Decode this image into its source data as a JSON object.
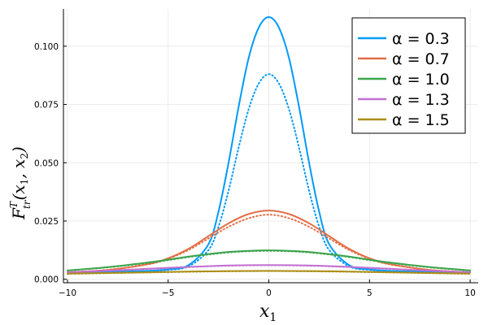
{
  "chart_data": {
    "type": "line",
    "xlabel": "x",
    "xlabel_sub": "1",
    "ylabel": "F",
    "ylabel_sup": "T",
    "ylabel_sub": "tr",
    "ylabel_args": "(x",
    "ylabel_args_sub1": "1",
    "ylabel_args_mid": ", x",
    "ylabel_args_sub2": "2",
    "ylabel_args_close": ")",
    "xlim": [
      -10.2,
      10.4
    ],
    "ylim": [
      -0.0015,
      0.116
    ],
    "xticks": [
      -10,
      -5,
      0,
      5,
      10
    ],
    "xtick_labels": [
      "−10",
      "−5",
      "0",
      "5",
      "10"
    ],
    "yticks": [
      0.0,
      0.025,
      0.05,
      0.075,
      0.1
    ],
    "ytick_labels": [
      "0.000",
      "0.025",
      "0.050",
      "0.075",
      "0.100"
    ],
    "grid": true,
    "legend_position": "top-right",
    "series": [
      {
        "name": "α = 0.3",
        "color": "#009af9",
        "style": "solid",
        "x": [
          -10,
          -8,
          -6,
          -5,
          -4,
          -3,
          -2.5,
          -2,
          -1.5,
          -1,
          -0.5,
          0,
          0.5,
          1,
          1.5,
          2,
          2.5,
          3,
          4,
          5,
          6,
          8,
          10
        ],
        "y": [
          0.003,
          0.0032,
          0.0036,
          0.0042,
          0.006,
          0.015,
          0.029,
          0.05,
          0.074,
          0.095,
          0.108,
          0.1125,
          0.108,
          0.095,
          0.074,
          0.05,
          0.029,
          0.015,
          0.006,
          0.0042,
          0.0036,
          0.0032,
          0.003
        ]
      },
      {
        "name": "",
        "color": "#009af9",
        "style": "dotted",
        "x": [
          -10,
          -8,
          -6,
          -5,
          -4,
          -3,
          -2.5,
          -2,
          -1.5,
          -1,
          -0.5,
          0,
          0.5,
          1,
          1.5,
          2,
          2.5,
          3,
          4,
          5,
          6,
          8,
          10
        ],
        "y": [
          0.003,
          0.0032,
          0.0035,
          0.004,
          0.0055,
          0.0125,
          0.0225,
          0.038,
          0.0565,
          0.073,
          0.084,
          0.088,
          0.084,
          0.073,
          0.0565,
          0.038,
          0.0225,
          0.0125,
          0.0055,
          0.004,
          0.0035,
          0.0032,
          0.003
        ]
      },
      {
        "name": "α = 0.7",
        "color": "#e26f46",
        "style": "solid",
        "x": [
          -10,
          -8,
          -6,
          -5,
          -4,
          -3,
          -2,
          -1,
          0,
          1,
          2,
          3,
          4,
          5,
          6,
          8,
          10
        ],
        "y": [
          0.003,
          0.004,
          0.0065,
          0.009,
          0.013,
          0.0185,
          0.024,
          0.028,
          0.0295,
          0.028,
          0.024,
          0.0185,
          0.013,
          0.009,
          0.0065,
          0.004,
          0.003
        ]
      },
      {
        "name": "",
        "color": "#e26f46",
        "style": "dotted",
        "x": [
          -10,
          -8,
          -6,
          -5,
          -4,
          -3,
          -2,
          -1,
          0,
          1,
          2,
          3,
          4,
          5,
          6,
          8,
          10
        ],
        "y": [
          0.003,
          0.004,
          0.0064,
          0.0088,
          0.0125,
          0.0175,
          0.0225,
          0.0262,
          0.0277,
          0.0262,
          0.0225,
          0.0175,
          0.0125,
          0.0088,
          0.0064,
          0.004,
          0.003
        ]
      },
      {
        "name": "α = 1.0",
        "color": "#3da44d",
        "style": "solid",
        "x": [
          -10,
          -8,
          -6,
          -5,
          -4,
          -3,
          -2,
          -1,
          0,
          1,
          2,
          3,
          4,
          5,
          6,
          8,
          10
        ],
        "y": [
          0.0038,
          0.0052,
          0.0072,
          0.0084,
          0.0097,
          0.0108,
          0.0117,
          0.0122,
          0.0124,
          0.0122,
          0.0117,
          0.0108,
          0.0097,
          0.0084,
          0.0072,
          0.0052,
          0.0038
        ]
      },
      {
        "name": "",
        "color": "#3da44d",
        "style": "dotted",
        "x": [
          -10,
          -8,
          -6,
          -5,
          -4,
          -3,
          -2,
          -1,
          0,
          1,
          2,
          3,
          4,
          5,
          6,
          8,
          10
        ],
        "y": [
          0.0037,
          0.0051,
          0.007,
          0.0082,
          0.0095,
          0.0106,
          0.0115,
          0.012,
          0.0122,
          0.012,
          0.0115,
          0.0106,
          0.0095,
          0.0082,
          0.007,
          0.0051,
          0.0037
        ]
      },
      {
        "name": "α = 1.3",
        "color": "#c271d2",
        "style": "solid",
        "x": [
          -10,
          -8,
          -6,
          -4,
          -2,
          0,
          2,
          4,
          6,
          8,
          10
        ],
        "y": [
          0.003,
          0.0037,
          0.0045,
          0.0053,
          0.0059,
          0.0061,
          0.0059,
          0.0053,
          0.0045,
          0.0037,
          0.003
        ]
      },
      {
        "name": "",
        "color": "#c271d2",
        "style": "dotted",
        "x": [
          -10,
          -8,
          -6,
          -4,
          -2,
          0,
          2,
          4,
          6,
          8,
          10
        ],
        "y": [
          0.0029,
          0.0036,
          0.0044,
          0.0052,
          0.0058,
          0.006,
          0.0058,
          0.0052,
          0.0044,
          0.0036,
          0.0029
        ]
      },
      {
        "name": "α = 1.5",
        "color": "#ac8d18",
        "style": "solid",
        "x": [
          -10,
          -8,
          -6,
          -4,
          -2,
          0,
          2,
          4,
          6,
          8,
          10
        ],
        "y": [
          0.0024,
          0.0027,
          0.003,
          0.0033,
          0.0035,
          0.0036,
          0.0035,
          0.0033,
          0.003,
          0.0027,
          0.0024
        ]
      },
      {
        "name": "",
        "color": "#ac8d18",
        "style": "dotted",
        "x": [
          -10,
          -8,
          -6,
          -4,
          -2,
          0,
          2,
          4,
          6,
          8,
          10
        ],
        "y": [
          0.0023,
          0.0026,
          0.0029,
          0.0032,
          0.0034,
          0.0035,
          0.0034,
          0.0032,
          0.0029,
          0.0026,
          0.0023
        ]
      }
    ]
  }
}
